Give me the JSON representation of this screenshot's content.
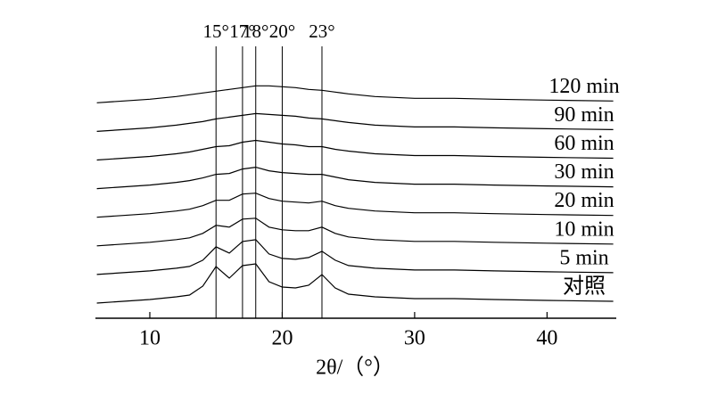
{
  "chart_data": {
    "type": "line",
    "xlabel": "2θ/（°）",
    "x": [
      6,
      8,
      10,
      12,
      13,
      14,
      15,
      16,
      17,
      18,
      19,
      20,
      21,
      22,
      23,
      24,
      25,
      27,
      30,
      33,
      36,
      40,
      45
    ],
    "xlim": [
      6,
      45
    ],
    "xticks": [
      10,
      20,
      30,
      40
    ],
    "ref_lines": [
      {
        "value": 15,
        "label": "15°"
      },
      {
        "value": 17,
        "label": "17°"
      },
      {
        "value": 18,
        "label": "18°"
      },
      {
        "value": 20,
        "label": "20°"
      },
      {
        "value": 23,
        "label": "23°"
      }
    ],
    "color": "#000000",
    "series": [
      {
        "name": "120 min",
        "values": [
          0,
          2,
          4,
          7,
          9,
          11,
          13,
          15,
          17,
          19,
          19,
          18,
          17,
          15,
          14,
          12,
          10,
          7,
          5,
          5,
          4,
          3,
          2
        ]
      },
      {
        "name": "90 min",
        "values": [
          0,
          2,
          4,
          7,
          9,
          11,
          14,
          16,
          18,
          20,
          19,
          18,
          17,
          15,
          14,
          12,
          10,
          7,
          5,
          5,
          4,
          3,
          2
        ]
      },
      {
        "name": "60 min",
        "values": [
          0,
          2,
          4,
          7,
          9,
          12,
          15,
          16,
          20,
          22,
          20,
          18,
          17,
          15,
          15,
          12,
          10,
          7,
          5,
          5,
          4,
          3,
          2
        ]
      },
      {
        "name": "30 min",
        "values": [
          0,
          2,
          4,
          7,
          9,
          12,
          16,
          17,
          22,
          24,
          20,
          18,
          17,
          16,
          16,
          13,
          10,
          7,
          5,
          5,
          4,
          3,
          2
        ]
      },
      {
        "name": "20 min",
        "values": [
          0,
          2,
          4,
          7,
          9,
          13,
          19,
          19,
          26,
          27,
          21,
          18,
          17,
          16,
          18,
          13,
          10,
          7,
          5,
          5,
          4,
          3,
          2
        ]
      },
      {
        "name": "10 min",
        "values": [
          0,
          2,
          4,
          7,
          9,
          14,
          23,
          21,
          30,
          31,
          21,
          18,
          17,
          17,
          21,
          14,
          10,
          7,
          5,
          5,
          4,
          3,
          2
        ]
      },
      {
        "name": "5 min",
        "values": [
          0,
          2,
          4,
          7,
          9,
          16,
          31,
          24,
          37,
          39,
          23,
          18,
          17,
          19,
          26,
          16,
          10,
          7,
          5,
          5,
          4,
          3,
          2
        ]
      },
      {
        "name": "对照",
        "values": [
          0,
          2,
          4,
          7,
          9,
          19,
          41,
          28,
          42,
          44,
          24,
          18,
          17,
          20,
          32,
          17,
          10,
          7,
          5,
          5,
          4,
          3,
          2
        ]
      }
    ]
  }
}
